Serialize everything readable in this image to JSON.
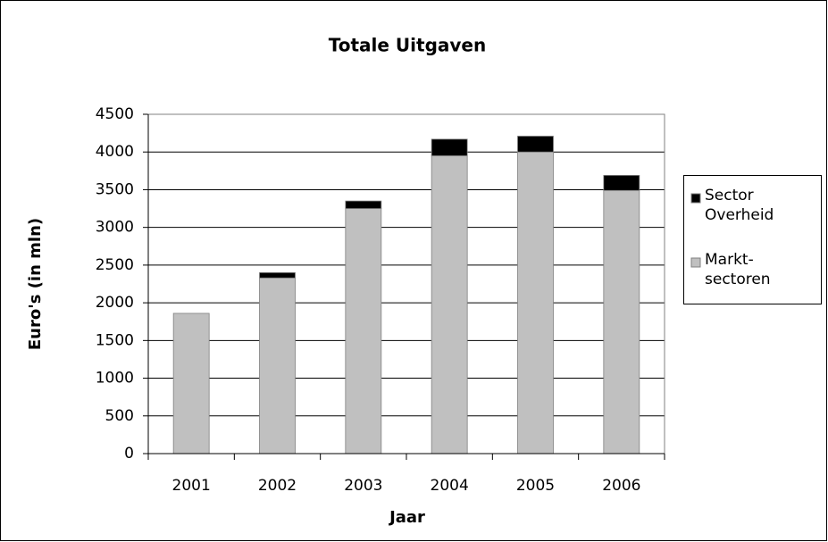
{
  "chart_data": {
    "type": "stacked-bar",
    "title": "Totale Uitgaven",
    "x_label": "Jaar",
    "y_label": "Euro's (in mln)",
    "categories": [
      "2001",
      "2002",
      "2003",
      "2004",
      "2005",
      "2006"
    ],
    "series": [
      {
        "name": "Markt-sectoren",
        "color": "#c0c0c0",
        "values": [
          1860,
          2330,
          3250,
          3950,
          4000,
          3490
        ]
      },
      {
        "name": "Sector Overheid",
        "color": "#000000",
        "values": [
          0,
          70,
          100,
          220,
          210,
          200
        ]
      }
    ],
    "ylim": [
      0,
      4500
    ],
    "yticks": [
      0,
      500,
      1000,
      1500,
      2000,
      2500,
      3000,
      3500,
      4000,
      4500
    ],
    "grid": true,
    "legend": "right"
  }
}
